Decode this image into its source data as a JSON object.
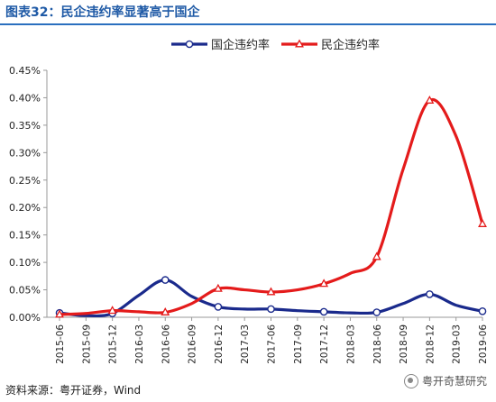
{
  "header": {
    "title": "图表32：民企违约率显著高于国企"
  },
  "footer": {
    "source": "资料来源：粤开证券，Wind",
    "watermark": "粤开奇慧研究"
  },
  "chart_data": {
    "type": "line",
    "title": "",
    "xlabel": "",
    "ylabel": "",
    "ylim": [
      0,
      0.45
    ],
    "yticks": [
      "0.00%",
      "0.05%",
      "0.10%",
      "0.15%",
      "0.20%",
      "0.25%",
      "0.30%",
      "0.35%",
      "0.40%",
      "0.45%"
    ],
    "categories": [
      "2015-06",
      "2015-09",
      "2015-12",
      "2016-03",
      "2016-06",
      "2016-09",
      "2016-12",
      "2017-03",
      "2017-06",
      "2017-09",
      "2017-12",
      "2018-03",
      "2018-06",
      "2018-09",
      "2018-12",
      "2019-03",
      "2019-06"
    ],
    "legend_position": "top",
    "grid": false,
    "series": [
      {
        "name": "国企违约率",
        "color": "#1a2a8c",
        "marker": "circle",
        "values": [
          0.008,
          0.003,
          0.007,
          0.04,
          0.068,
          0.038,
          0.019,
          0.015,
          0.015,
          0.012,
          0.01,
          0.008,
          0.009,
          0.025,
          0.042,
          0.022,
          0.011
        ],
        "marked": [
          true,
          false,
          true,
          false,
          true,
          false,
          true,
          false,
          true,
          false,
          true,
          false,
          true,
          false,
          true,
          false,
          true
        ]
      },
      {
        "name": "民企违约率",
        "color": "#e41b1b",
        "marker": "triangle",
        "values": [
          0.005,
          0.007,
          0.012,
          0.01,
          0.009,
          0.025,
          0.052,
          0.05,
          0.046,
          0.05,
          0.061,
          0.08,
          0.11,
          0.27,
          0.395,
          0.33,
          0.17
        ],
        "marked": [
          true,
          false,
          true,
          false,
          true,
          false,
          true,
          false,
          true,
          false,
          true,
          false,
          true,
          false,
          true,
          false,
          true
        ]
      }
    ]
  }
}
